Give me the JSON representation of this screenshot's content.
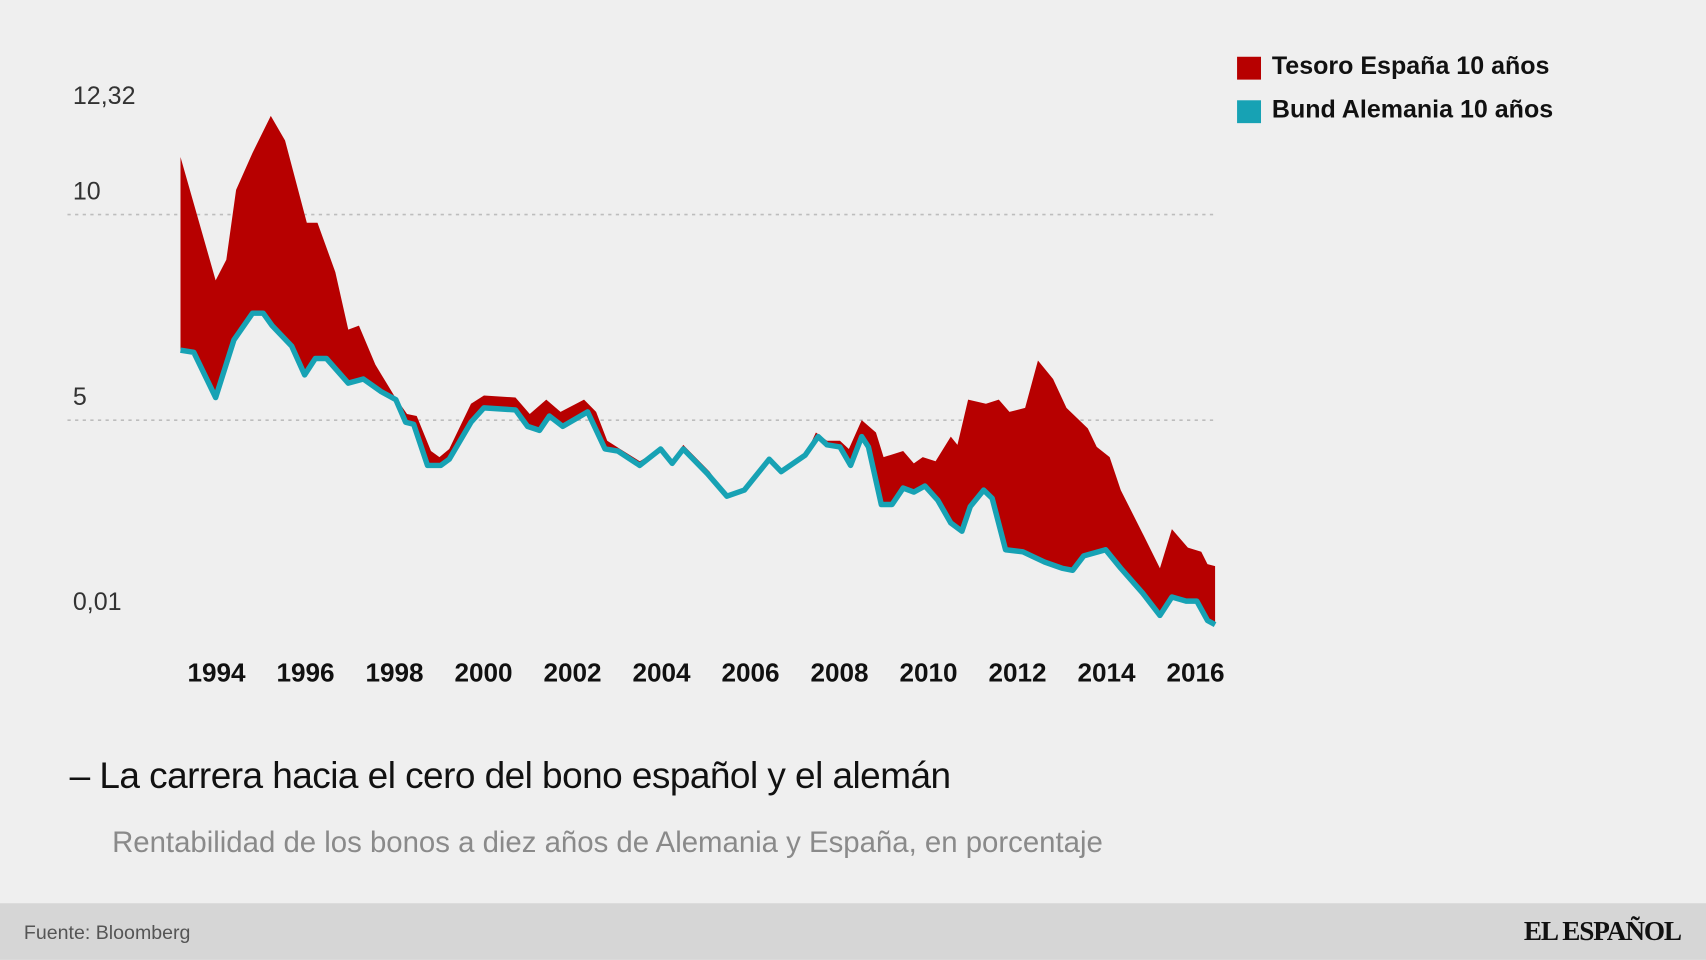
{
  "chart_data": {
    "type": "area",
    "title": "La carrera hacia el cero del bono español y el alemán",
    "subtitle": "Rentabilidad de los bonos a diez años de Alemania y España, en porcentaje",
    "xlabel": "",
    "ylabel": "",
    "xlim": [
      1993,
      2016.6
    ],
    "ylim": [
      0.01,
      12.32
    ],
    "y_ticks": [
      0.01,
      5,
      10,
      12.32
    ],
    "y_tick_labels": [
      "0,01",
      "5",
      "10",
      "12,32"
    ],
    "x_ticks": [
      1994,
      1996,
      1998,
      2000,
      2002,
      2004,
      2006,
      2008,
      2010,
      2012,
      2014,
      2016
    ],
    "x_tick_labels": [
      "1994",
      "1996",
      "1998",
      "2000",
      "2002",
      "2004",
      "2006",
      "2008",
      "2010",
      "2012",
      "2014",
      "2016"
    ],
    "grid": "dotted horizontal at 5 and 10",
    "legend_placement": "top-right",
    "colors": {
      "spain": "#b70000",
      "germany": "#17a2b4"
    },
    "series": [
      {
        "name": "Tesoro España 10 años",
        "x": [
          1993.19,
          1993.98,
          1994.22,
          1994.44,
          1994.81,
          1995.22,
          1995.54,
          1996.03,
          1996.27,
          1996.67,
          1996.96,
          1997.2,
          1997.57,
          1997.99,
          1998.28,
          1998.5,
          1998.82,
          1999.01,
          1999.23,
          1999.72,
          2000.01,
          2000.72,
          2001.04,
          2001.41,
          2001.73,
          2002.26,
          2002.53,
          2002.78,
          2003.07,
          2003.51,
          2003.98,
          2004.24,
          2004.49,
          2005.08,
          2005.47,
          2005.86,
          2006.42,
          2006.69,
          2007.23,
          2007.47,
          2007.72,
          2008.01,
          2008.21,
          2008.5,
          2008.82,
          2008.99,
          2009.43,
          2009.67,
          2009.87,
          2010.16,
          2010.5,
          2010.65,
          2010.89,
          2011.29,
          2011.58,
          2011.82,
          2012.17,
          2012.46,
          2012.8,
          2013.1,
          2013.58,
          2013.78,
          2014.07,
          2014.32,
          2014.81,
          2015.2,
          2015.47,
          2015.83,
          2016.13,
          2016.27,
          2016.44
        ],
        "y": [
          11.4,
          8.4,
          8.9,
          10.6,
          11.5,
          12.4,
          11.8,
          9.8,
          9.8,
          8.6,
          7.2,
          7.3,
          6.35,
          5.6,
          5.15,
          5.1,
          4.25,
          4.1,
          4.3,
          5.4,
          5.6,
          5.55,
          5.15,
          5.5,
          5.2,
          5.5,
          5.2,
          4.5,
          4.3,
          4.0,
          4.3,
          4.0,
          4.4,
          3.75,
          3.15,
          3.3,
          4.05,
          3.75,
          4.15,
          4.7,
          4.5,
          4.5,
          4.3,
          5.0,
          4.7,
          4.1,
          4.25,
          3.95,
          4.1,
          4.0,
          4.6,
          4.4,
          5.5,
          5.4,
          5.5,
          5.2,
          5.3,
          6.45,
          6.0,
          5.3,
          4.8,
          4.35,
          4.1,
          3.3,
          2.25,
          1.4,
          2.35,
          1.9,
          1.8,
          1.5,
          1.45
        ]
      },
      {
        "name": "Bund Alemania 10 años",
        "x": [
          1993.19,
          1993.49,
          1993.98,
          1994.39,
          1994.81,
          1995.05,
          1995.25,
          1995.69,
          1995.98,
          1996.22,
          1996.47,
          1996.96,
          1997.3,
          1997.69,
          1998.03,
          1998.25,
          1998.43,
          1998.74,
          1999.04,
          1999.23,
          1999.72,
          2000.01,
          2000.72,
          2000.99,
          2001.26,
          2001.48,
          2001.78,
          2002.34,
          2002.73,
          2003.02,
          2003.51,
          2003.98,
          2004.24,
          2004.49,
          2005.03,
          2005.47,
          2005.86,
          2006.42,
          2006.69,
          2007.23,
          2007.52,
          2007.72,
          2008.01,
          2008.25,
          2008.5,
          2008.65,
          2008.94,
          2009.18,
          2009.43,
          2009.67,
          2009.92,
          2010.21,
          2010.5,
          2010.75,
          2010.94,
          2011.24,
          2011.43,
          2011.73,
          2012.12,
          2012.61,
          2013.0,
          2013.24,
          2013.49,
          2013.98,
          2014.32,
          2014.81,
          2015.2,
          2015.47,
          2015.79,
          2016.03,
          2016.27,
          2016.44
        ],
        "y": [
          6.7,
          6.65,
          5.55,
          6.95,
          7.6,
          7.6,
          7.3,
          6.8,
          6.1,
          6.5,
          6.5,
          5.9,
          6.0,
          5.7,
          5.5,
          4.95,
          4.9,
          3.9,
          3.9,
          4.05,
          4.95,
          5.3,
          5.25,
          4.85,
          4.75,
          5.1,
          4.85,
          5.2,
          4.3,
          4.25,
          3.9,
          4.3,
          3.95,
          4.3,
          3.7,
          3.15,
          3.3,
          4.05,
          3.75,
          4.15,
          4.6,
          4.4,
          4.35,
          3.9,
          4.6,
          4.35,
          2.95,
          2.95,
          3.35,
          3.25,
          3.4,
          3.05,
          2.5,
          2.3,
          2.9,
          3.3,
          3.1,
          1.85,
          1.8,
          1.55,
          1.4,
          1.35,
          1.7,
          1.85,
          1.4,
          0.8,
          0.25,
          0.7,
          0.6,
          0.6,
          0.13,
          0.03
        ]
      }
    ]
  },
  "legend": [
    {
      "label": "Tesoro España 10 años"
    },
    {
      "label": "Bund Alemania 10 años"
    }
  ],
  "title_dash": "–",
  "footer": {
    "source": "Fuente: Bloomberg",
    "logo": "EL ESPAÑOL"
  }
}
